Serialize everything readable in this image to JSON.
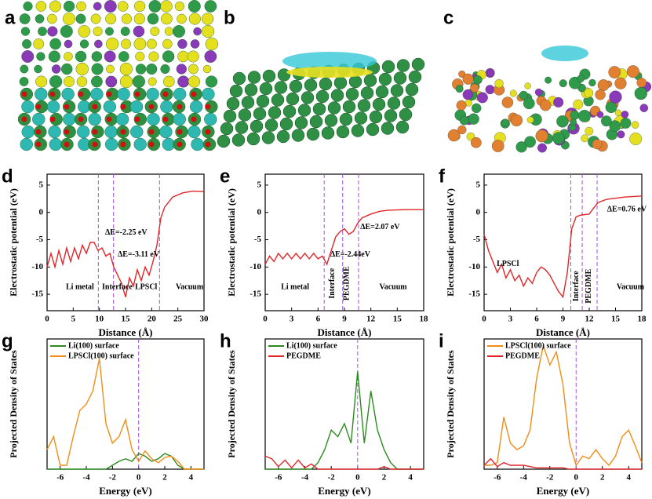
{
  "image_panels": [
    {
      "label": "a"
    },
    {
      "label": "b"
    },
    {
      "label": "c"
    }
  ],
  "chart_data": [
    {
      "type": "line",
      "label": "d",
      "x_label": "Distance (Å)",
      "y_label": "Electrostatic potential (eV)",
      "xlim": [
        0,
        30
      ],
      "xticks": [
        0,
        5,
        10,
        15,
        20,
        25,
        30
      ],
      "ylim": [
        -18,
        7
      ],
      "yticks": [
        -15,
        -10,
        -5,
        0,
        5
      ],
      "x": [
        0,
        0.75,
        1.5,
        2.25,
        3,
        3.75,
        4.5,
        5.25,
        6,
        6.75,
        7.5,
        8.25,
        9,
        9.75,
        10.5,
        11.25,
        12,
        12.75,
        13.5,
        14.25,
        15,
        15.75,
        16.5,
        17.25,
        18,
        18.75,
        19.5,
        20.25,
        21,
        21.75,
        22.5,
        24,
        26,
        28,
        30
      ],
      "series": [
        {
          "color": "#e0262a",
          "values": [
            -10,
            -7.5,
            -10,
            -7,
            -9.5,
            -6.5,
            -9,
            -6.5,
            -8.5,
            -6,
            -7.5,
            -5.5,
            -5.5,
            -7,
            -6.5,
            -8,
            -7.5,
            -10,
            -11.5,
            -13,
            -15.5,
            -12,
            -13.5,
            -10.5,
            -12.5,
            -10,
            -11.5,
            -9,
            -6,
            -1,
            1,
            2.8,
            3.6,
            3.9,
            3.8
          ]
        }
      ],
      "vlines": [
        9.8,
        12.7,
        21.5
      ],
      "annotations": [
        "ΔE=-2.25 eV",
        "ΔE=-3.11 eV",
        "Li metal",
        "Interface",
        "LPSCl",
        "Vacuum"
      ]
    },
    {
      "type": "line",
      "label": "e",
      "x_label": "Distance (Å)",
      "y_label": "Electrostatic potential (eV)",
      "xlim": [
        0,
        18
      ],
      "xticks": [
        0,
        3,
        6,
        9,
        12,
        15,
        18
      ],
      "ylim": [
        -18,
        7
      ],
      "yticks": [
        -15,
        -10,
        -5,
        0,
        5
      ],
      "x": [
        0,
        0.5,
        1,
        1.5,
        2,
        2.5,
        3,
        3.5,
        4,
        4.5,
        5,
        5.5,
        6,
        6.5,
        7,
        7.5,
        8,
        8.5,
        9,
        9.5,
        10,
        10.5,
        11,
        12,
        13,
        14,
        16,
        18
      ],
      "series": [
        {
          "color": "#e0262a",
          "values": [
            -9.5,
            -8,
            -9,
            -7.5,
            -8.5,
            -7.5,
            -8.5,
            -7.5,
            -8.5,
            -7.5,
            -8.5,
            -7.5,
            -8.5,
            -8,
            -9.5,
            -7,
            -4.5,
            -3.5,
            -3,
            -4,
            -3.5,
            -2,
            -1,
            -0.3,
            0.2,
            0.4,
            0.5,
            0.5
          ]
        }
      ],
      "vlines": [
        6.7,
        8.8,
        10.6
      ],
      "annotations": [
        "ΔE=2.07 eV",
        "ΔE=-2.44eV",
        "Li metal",
        "Interface",
        "PEGDME",
        "Vacuum"
      ]
    },
    {
      "type": "line",
      "label": "f",
      "x_label": "Distance (Å)",
      "y_label": "Electrostatic potential (eV)",
      "xlim": [
        0,
        18
      ],
      "xticks": [
        0,
        3,
        6,
        9,
        12,
        15,
        18
      ],
      "ylim": [
        -18,
        7
      ],
      "yticks": [
        -15,
        -10,
        -5,
        0,
        5
      ],
      "x": [
        0,
        0.5,
        1,
        1.5,
        2,
        2.5,
        3,
        3.5,
        4,
        4.5,
        5,
        5.5,
        6,
        6.5,
        7,
        7.5,
        8,
        8.5,
        9,
        9.5,
        10,
        10.5,
        11,
        11.5,
        12,
        12.5,
        13,
        14,
        16,
        18
      ],
      "series": [
        {
          "color": "#e0262a",
          "values": [
            -4,
            -7,
            -9,
            -11,
            -9.5,
            -12,
            -10.5,
            -12.5,
            -11.5,
            -13.5,
            -12,
            -13,
            -11,
            -10,
            -10.5,
            -11.5,
            -13,
            -14.5,
            -15.5,
            -11,
            -3,
            -0.8,
            -0.5,
            -0.4,
            -0.3,
            0.8,
            1.8,
            2.4,
            2.8,
            3
          ]
        }
      ],
      "vlines": [
        9.9,
        11.2,
        12.9
      ],
      "annotations": [
        "ΔE=0.76 eV",
        "LPSCl",
        "Interface",
        "PEGDME",
        "Vacuum"
      ]
    },
    {
      "type": "line",
      "label": "g",
      "x_label": "Energy (eV)",
      "y_label": "Projected Density of States",
      "xlim": [
        -7,
        5
      ],
      "xticks": [
        -6,
        -4,
        -2,
        0,
        2,
        4
      ],
      "ylim": [
        0,
        10
      ],
      "x": [
        -7,
        -6.5,
        -6,
        -5.5,
        -5,
        -4.5,
        -4,
        -3.5,
        -3,
        -2.5,
        -2,
        -1.5,
        -1,
        -0.5,
        0,
        0.5,
        1,
        1.5,
        2,
        2.5,
        3,
        3.5,
        4,
        4.5,
        5
      ],
      "series": [
        {
          "name": "Li(100) surface",
          "color": "#2b8a1e",
          "values": [
            0,
            0,
            0,
            0,
            0,
            0,
            0,
            0,
            0,
            0,
            0.3,
            0.6,
            0.8,
            0.6,
            1.2,
            1.0,
            0.6,
            0.8,
            1.2,
            1.0,
            0.3,
            0,
            0,
            0,
            0
          ]
        },
        {
          "name": "LPSCl(100) surface",
          "color": "#f28c17",
          "values": [
            1.5,
            2.5,
            0.3,
            0.3,
            2.5,
            4.5,
            5,
            6,
            8.5,
            3.5,
            2,
            2.5,
            3.8,
            1.5,
            0.6,
            1.4,
            0.8,
            0.5,
            0.9,
            1.0,
            0.6,
            0,
            0,
            0,
            0
          ]
        }
      ],
      "vlines": [
        0
      ]
    },
    {
      "type": "line",
      "label": "h",
      "x_label": "Energy (eV)",
      "y_label": "Projected Density of States",
      "xlim": [
        -7,
        5
      ],
      "xticks": [
        -6,
        -4,
        -2,
        0,
        2,
        4
      ],
      "ylim": [
        0,
        10
      ],
      "x": [
        -7,
        -6.5,
        -6,
        -5.5,
        -5,
        -4.5,
        -4,
        -3.5,
        -3,
        -2.5,
        -2,
        -1.5,
        -1,
        -0.5,
        0,
        0.5,
        1,
        1.5,
        2,
        2.5,
        3,
        3.5,
        4,
        4.5,
        5
      ],
      "series": [
        {
          "name": "Li(100) surface",
          "color": "#2b8a1e",
          "values": [
            0,
            0,
            0,
            0,
            0,
            0,
            0,
            0,
            0.5,
            1.5,
            3,
            2.5,
            3.5,
            2,
            7.5,
            2,
            6,
            3,
            1.5,
            0.5,
            0,
            0,
            0,
            0,
            0
          ]
        },
        {
          "name": "PEGDME",
          "color": "#e0262a",
          "values": [
            1,
            0.8,
            0.2,
            0.7,
            0.1,
            0.7,
            0.1,
            0.4,
            0,
            0,
            0,
            0,
            0,
            0,
            0,
            0,
            0,
            0,
            0.2,
            0,
            0,
            0,
            0,
            0,
            0
          ]
        }
      ],
      "vlines": [
        0
      ]
    },
    {
      "type": "line",
      "label": "i",
      "x_label": "Energy (eV)",
      "y_label": "Projected Density of States",
      "xlim": [
        -7,
        5
      ],
      "xticks": [
        -6,
        -4,
        -2,
        0,
        2,
        4
      ],
      "ylim": [
        0,
        10
      ],
      "x": [
        -7,
        -6.5,
        -6,
        -5.5,
        -5,
        -4.5,
        -4,
        -3.5,
        -3,
        -2.5,
        -2,
        -1.5,
        -1,
        -0.5,
        0,
        0.5,
        1,
        1.5,
        2,
        2.5,
        3,
        3.5,
        4,
        4.5,
        5
      ],
      "series": [
        {
          "name": "LPSCl(100) surface",
          "color": "#f28c17",
          "values": [
            0.3,
            0.3,
            0.5,
            4,
            2,
            1.5,
            1.8,
            3,
            7,
            9.5,
            8,
            9,
            6.5,
            2,
            0.3,
            1,
            0.8,
            1.5,
            0.8,
            0.3,
            1,
            2.5,
            3,
            1.8,
            0.5
          ]
        },
        {
          "name": "PEGDME",
          "color": "#e0262a",
          "values": [
            0.3,
            0.8,
            0.2,
            0.5,
            0.3,
            0.3,
            0.3,
            0.2,
            0.1,
            0.1,
            0.1,
            0.1,
            0.1,
            0,
            0,
            0,
            0,
            0,
            0,
            0,
            0,
            0,
            0,
            0,
            0
          ]
        }
      ],
      "vlines": [
        0
      ]
    }
  ]
}
